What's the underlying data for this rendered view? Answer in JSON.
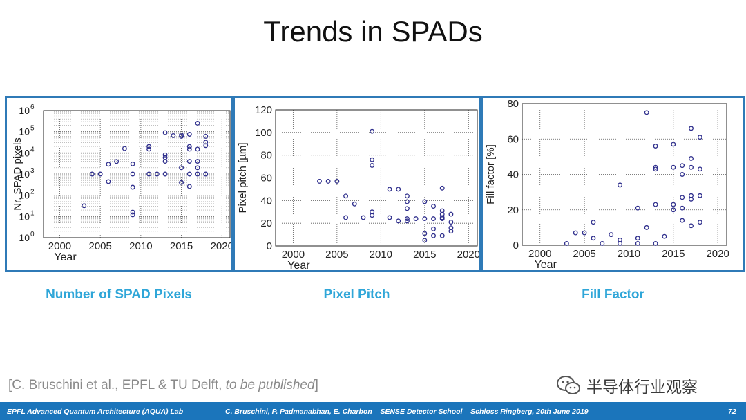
{
  "slide": {
    "title": "Trends in SPADs",
    "citation_prefix": "[C. Bruschini et al., EPFL & TU Delft, ",
    "citation_italic": "to be published",
    "citation_suffix": "]",
    "watermark": "半导体行业观察",
    "footer_left": "EPFL Advanced Quantum Architecture (AQUA) Lab",
    "footer_center": "C. Bruschini, P. Padmanabhan, E. Charbon – SENSE Detector School – Schloss Ringberg, 20th June 2019",
    "page_number": "72"
  },
  "captions": [
    "Number of SPAD Pixels",
    "Pixel Pitch",
    "Fill Factor"
  ],
  "colors": {
    "marker": "#2e2e8c",
    "frame": "#2f7ab7",
    "caption": "#2fa6d8",
    "footer": "#1b75bb"
  },
  "chart_data": [
    {
      "type": "scatter",
      "title": "",
      "xlabel": "Year",
      "ylabel": "Nr. SPAD pixels",
      "xlim": [
        1998,
        2021
      ],
      "ylim": [
        1,
        1000000
      ],
      "y_scale": "log",
      "grid": "major and minor (dotted)",
      "x_ticks": [
        2000,
        2005,
        2010,
        2015,
        2020
      ],
      "y_ticks": [
        1,
        10,
        100,
        1000,
        10000,
        100000,
        1000000
      ],
      "y_tick_labels": [
        "10^0",
        "10^1",
        "10^2",
        "10^3",
        "10^4",
        "10^5",
        "10^6"
      ],
      "points": [
        [
          2003,
          32
        ],
        [
          2004,
          1000
        ],
        [
          2005,
          1000
        ],
        [
          2006,
          2900
        ],
        [
          2006,
          440
        ],
        [
          2007,
          3900
        ],
        [
          2008,
          16000
        ],
        [
          2009,
          3000
        ],
        [
          2009,
          1000
        ],
        [
          2009,
          240
        ],
        [
          2009,
          16
        ],
        [
          2009,
          12
        ],
        [
          2011,
          20000
        ],
        [
          2011,
          15000
        ],
        [
          2011,
          1000
        ],
        [
          2012,
          1000
        ],
        [
          2013,
          90000
        ],
        [
          2013,
          8000
        ],
        [
          2013,
          6000
        ],
        [
          2013,
          4000
        ],
        [
          2013,
          1000
        ],
        [
          2014,
          65000
        ],
        [
          2015,
          70000
        ],
        [
          2015,
          60000
        ],
        [
          2015,
          2000
        ],
        [
          2015,
          400
        ],
        [
          2016,
          75000
        ],
        [
          2016,
          20000
        ],
        [
          2016,
          15000
        ],
        [
          2016,
          4000
        ],
        [
          2016,
          1000
        ],
        [
          2016,
          260
        ],
        [
          2017,
          250000
        ],
        [
          2017,
          15000
        ],
        [
          2017,
          4000
        ],
        [
          2017,
          2000
        ],
        [
          2017,
          1000
        ],
        [
          2018,
          60000
        ],
        [
          2018,
          32000
        ],
        [
          2018,
          22000
        ],
        [
          2018,
          1000
        ]
      ]
    },
    {
      "type": "scatter",
      "title": "",
      "xlabel": "Year",
      "ylabel": "Pixel pitch [µm]",
      "xlim": [
        1998,
        2021
      ],
      "ylim": [
        0,
        120
      ],
      "grid": "major (dotted)",
      "x_ticks": [
        2000,
        2005,
        2010,
        2015,
        2020
      ],
      "y_ticks": [
        0,
        20,
        40,
        60,
        80,
        100,
        120
      ],
      "points": [
        [
          2003,
          57
        ],
        [
          2004,
          57
        ],
        [
          2005,
          57
        ],
        [
          2006,
          44
        ],
        [
          2006,
          25
        ],
        [
          2007,
          37
        ],
        [
          2008,
          25
        ],
        [
          2009,
          101
        ],
        [
          2009,
          76
        ],
        [
          2009,
          71
        ],
        [
          2009,
          30
        ],
        [
          2009,
          27
        ],
        [
          2011,
          50
        ],
        [
          2011,
          25
        ],
        [
          2012,
          50
        ],
        [
          2012,
          22
        ],
        [
          2013,
          44
        ],
        [
          2013,
          39
        ],
        [
          2013,
          33
        ],
        [
          2013,
          24
        ],
        [
          2013,
          22
        ],
        [
          2014,
          24
        ],
        [
          2015,
          39
        ],
        [
          2015,
          24
        ],
        [
          2015,
          11
        ],
        [
          2015,
          5
        ],
        [
          2016,
          35
        ],
        [
          2016,
          24
        ],
        [
          2016,
          15
        ],
        [
          2016,
          9
        ],
        [
          2017,
          51
        ],
        [
          2017,
          31
        ],
        [
          2017,
          28
        ],
        [
          2017,
          25
        ],
        [
          2017,
          24
        ],
        [
          2017,
          9
        ],
        [
          2018,
          28
        ],
        [
          2018,
          21
        ],
        [
          2018,
          16
        ],
        [
          2018,
          13
        ]
      ]
    },
    {
      "type": "scatter",
      "title": "",
      "xlabel": "Year",
      "ylabel": "Fill factor [%]",
      "xlim": [
        1998,
        2021
      ],
      "ylim": [
        0,
        80
      ],
      "grid": "major (dotted)",
      "x_ticks": [
        2000,
        2005,
        2010,
        2015,
        2020
      ],
      "y_ticks": [
        0,
        20,
        40,
        60,
        80
      ],
      "points": [
        [
          2003,
          1
        ],
        [
          2004,
          7
        ],
        [
          2005,
          7
        ],
        [
          2006,
          13
        ],
        [
          2006,
          4
        ],
        [
          2007,
          1
        ],
        [
          2008,
          6
        ],
        [
          2009,
          34
        ],
        [
          2009,
          3
        ],
        [
          2009,
          1
        ],
        [
          2011,
          21
        ],
        [
          2011,
          4
        ],
        [
          2011,
          1
        ],
        [
          2012,
          75
        ],
        [
          2012,
          10
        ],
        [
          2013,
          56
        ],
        [
          2013,
          44
        ],
        [
          2013,
          43
        ],
        [
          2013,
          23
        ],
        [
          2013,
          1
        ],
        [
          2014,
          5
        ],
        [
          2015,
          57
        ],
        [
          2015,
          44
        ],
        [
          2015,
          23
        ],
        [
          2015,
          20
        ],
        [
          2016,
          45
        ],
        [
          2016,
          40
        ],
        [
          2016,
          27
        ],
        [
          2016,
          21
        ],
        [
          2016,
          14
        ],
        [
          2017,
          66
        ],
        [
          2017,
          49
        ],
        [
          2017,
          44
        ],
        [
          2017,
          28
        ],
        [
          2017,
          26
        ],
        [
          2017,
          11
        ],
        [
          2018,
          61
        ],
        [
          2018,
          43
        ],
        [
          2018,
          28
        ],
        [
          2018,
          13
        ]
      ]
    }
  ]
}
